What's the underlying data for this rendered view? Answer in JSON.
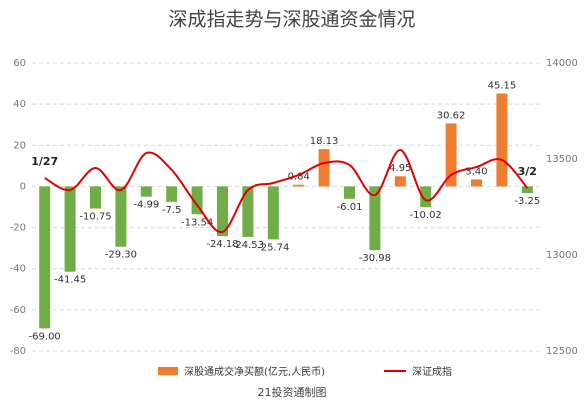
{
  "chart_data": {
    "type": "bar_line",
    "title": "深成指走势与深股通资金情况",
    "footer": "21投资通制图",
    "categories": [
      "1/27",
      null,
      null,
      null,
      null,
      null,
      null,
      null,
      null,
      null,
      null,
      null,
      null,
      null,
      null,
      null,
      null,
      null,
      null,
      "3/2"
    ],
    "series": [
      {
        "name": "深股通成交净买额(亿元,人民币)",
        "color": "#ed7d31",
        "negative_color": "#70ad47",
        "values": [
          -69.0,
          -41.45,
          -10.75,
          -29.3,
          -4.99,
          -7.5,
          -13.54,
          -24.18,
          -24.53,
          -25.74,
          0.84,
          18.13,
          -6.01,
          -30.98,
          4.95,
          -10.02,
          30.62,
          3.4,
          45.15,
          -3.25
        ],
        "value_labels": [
          "-69.00",
          "-41.45",
          "-10.75",
          "-29.30",
          "-4.99",
          "-7.5",
          "-13.54",
          "-24.18",
          "-24.53",
          "-25.74",
          "0.84",
          "18.13",
          "-6.01",
          "-30.98",
          "4.95",
          "-10.02",
          "30.62",
          "3.40",
          "45.15",
          "-3.25"
        ]
      },
      {
        "name": "深证成指",
        "color": "#e00000",
        "axis": "y2",
        "values": [
          13401,
          13338,
          13453,
          13338,
          13531,
          13443,
          13260,
          13120,
          13338,
          13375,
          13417,
          13479,
          13469,
          13312,
          13547,
          13286,
          13417,
          13458,
          13495,
          13349
        ]
      }
    ],
    "ylim": [
      -80,
      60
    ],
    "yticks": [
      -80,
      -60,
      -40,
      -20,
      0,
      20,
      40,
      60
    ],
    "y2lim": [
      12500,
      14000
    ],
    "y2ticks": [
      12500,
      13000,
      13500,
      14000
    ],
    "grid": true
  }
}
